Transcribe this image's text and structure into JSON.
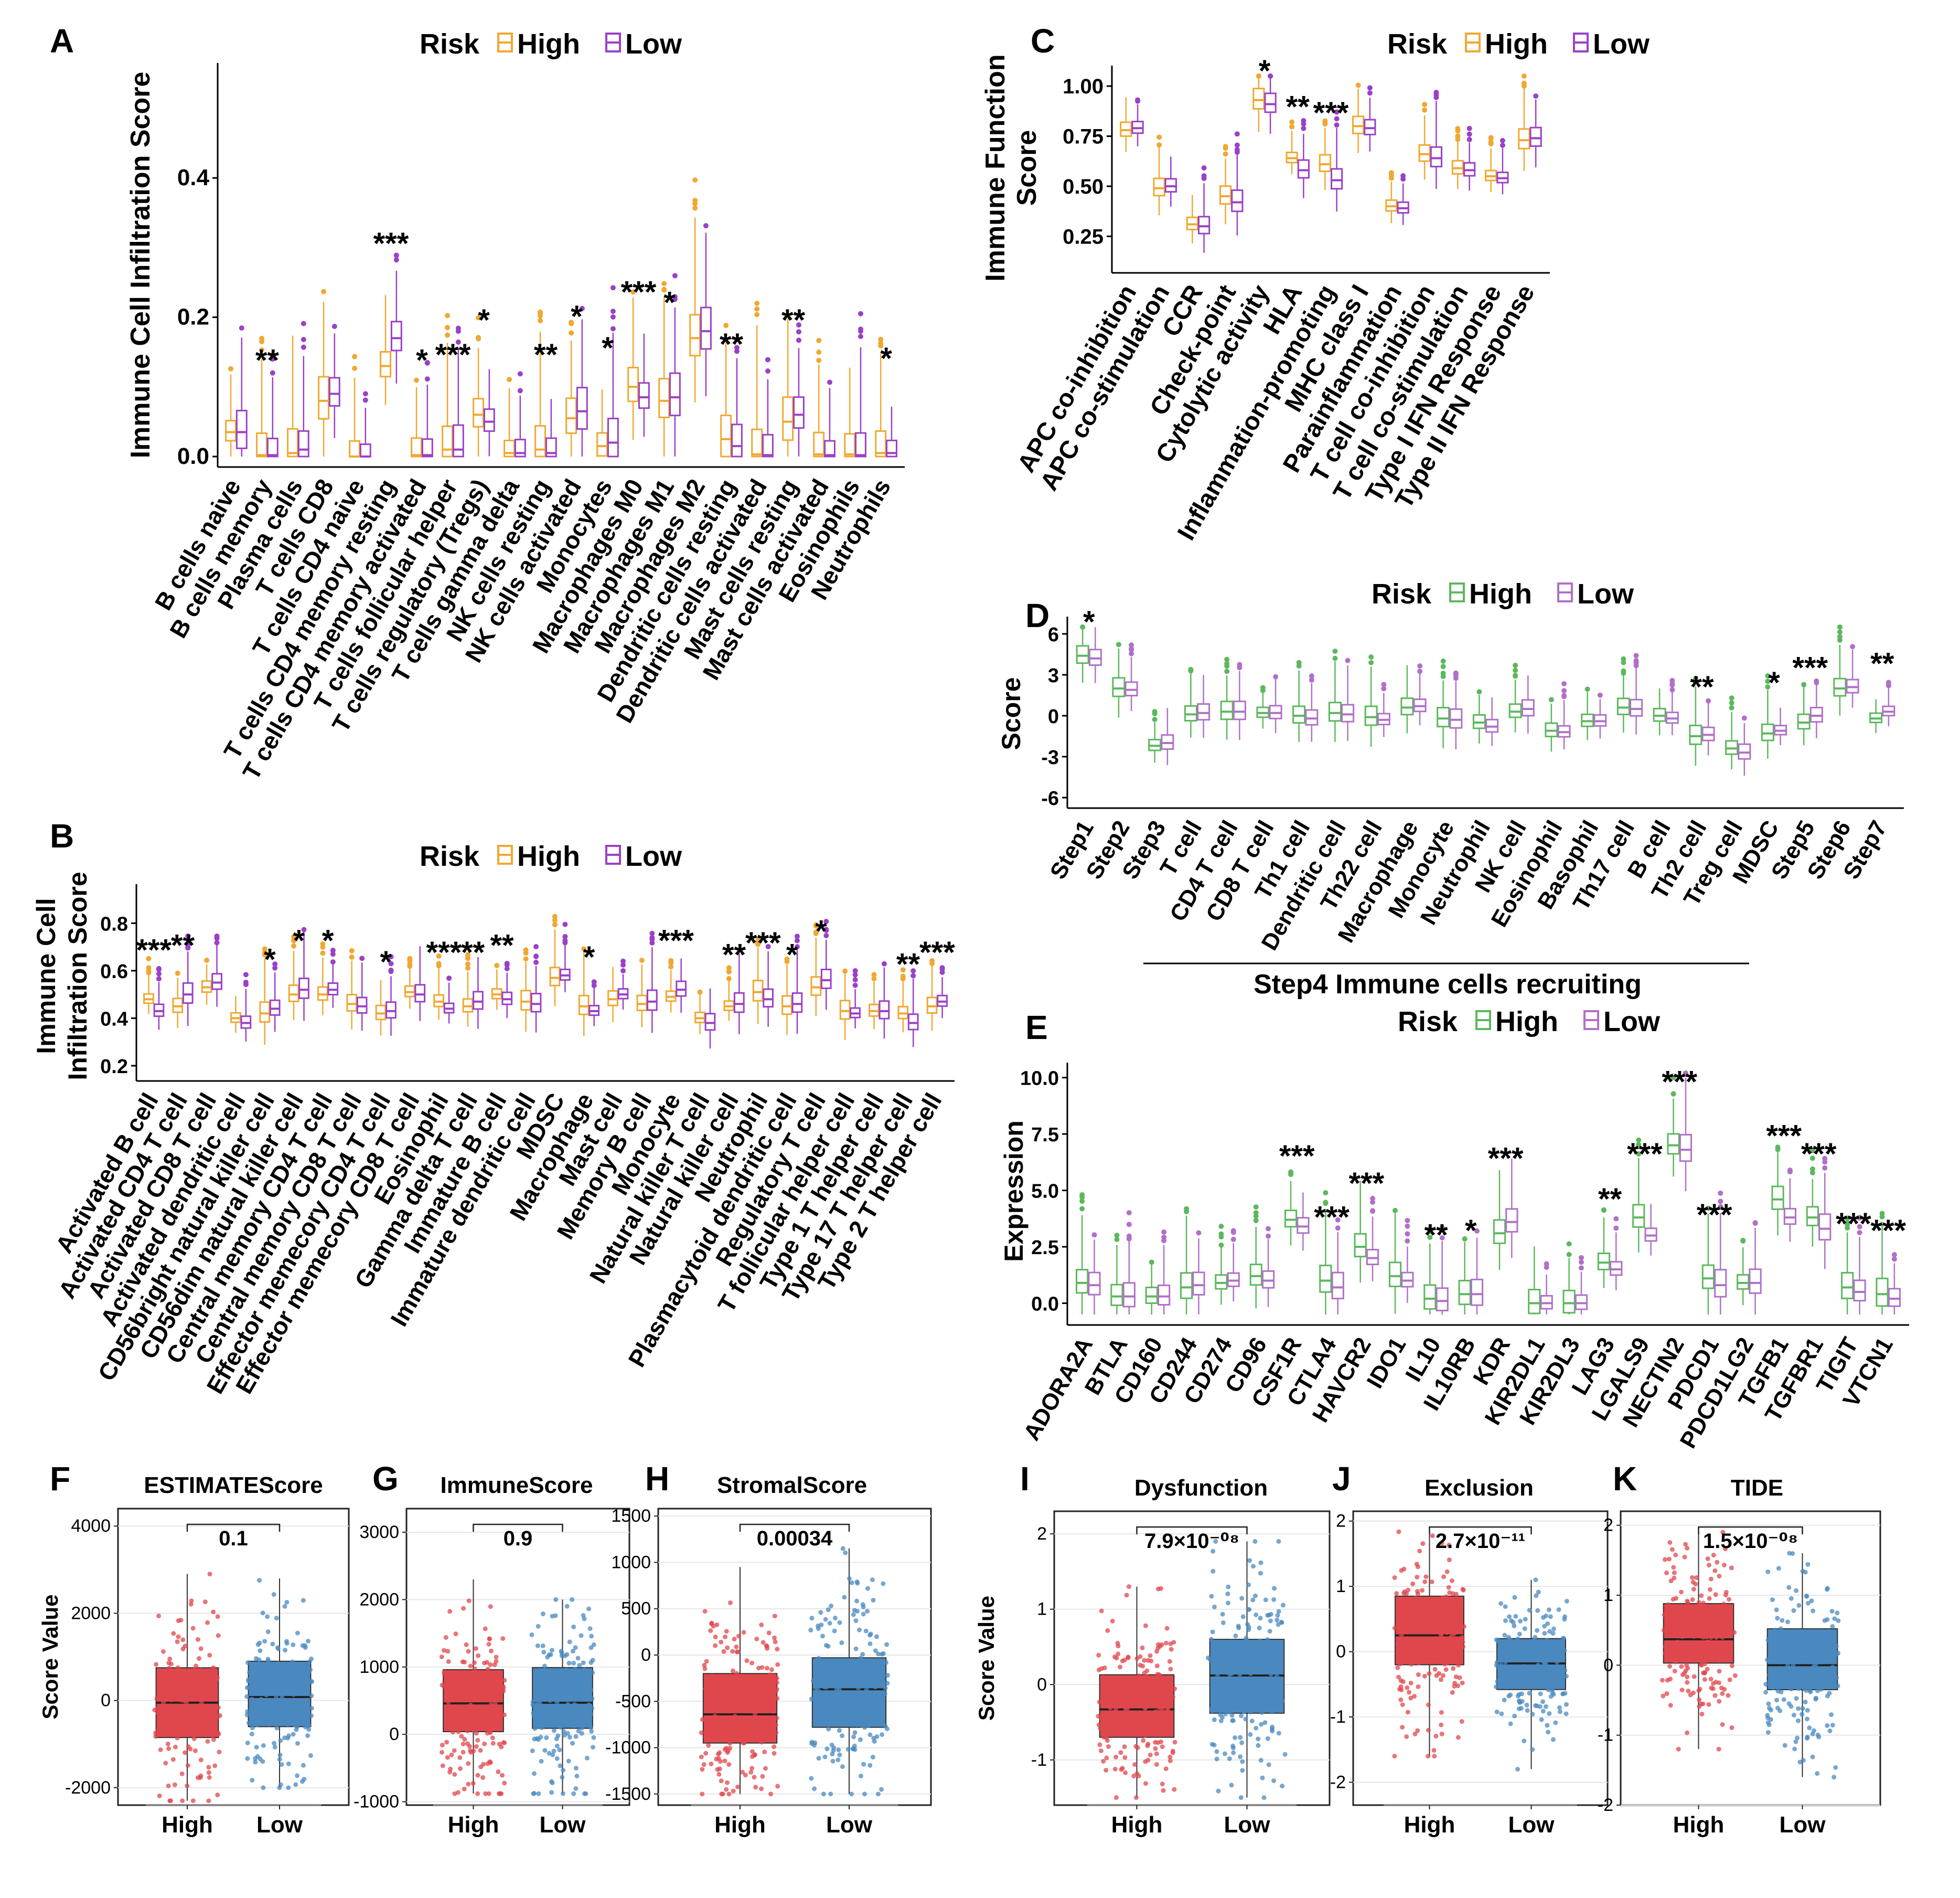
{
  "colors": {
    "high_orange": "#F0A830",
    "low_purple": "#9B40C8",
    "high_green": "#5CB85C",
    "low_violet": "#B070C8",
    "high_red": "#E0474C",
    "low_blue": "#4A89C0"
  },
  "chart_data": [
    {
      "id": "A",
      "label": "A",
      "type": "box",
      "legend": {
        "title": "Risk",
        "items": [
          "High",
          "Low"
        ]
      },
      "ylabel": "Immune Cell Infiltration Score",
      "ylim": [
        0,
        0.55
      ],
      "yticks": [
        0.0,
        0.2,
        0.4
      ],
      "categories": [
        "B cells naive",
        "B cells memory",
        "Plasma cells",
        "T cells CD8",
        "T cells CD4 naive",
        "T cells CD4 memory resting",
        "T cells CD4 memory activated",
        "T cells follicular helper",
        "T cells regulatory (Tregs)",
        "T cells gamma delta",
        "NK cells resting",
        "NK cells activated",
        "Monocytes",
        "Macrophages M0",
        "Macrophages M1",
        "Macrophages M2",
        "Dendritic cells resting",
        "Dendritic cells activated",
        "Mast cells resting",
        "Mast cells activated",
        "Eosinophils",
        "Neutrophils"
      ],
      "series": [
        {
          "name": "High",
          "median": [
            0.035,
            0.002,
            0.005,
            0.08,
            0,
            0.13,
            0.002,
            0.01,
            0.06,
            0.005,
            0.01,
            0.055,
            0.015,
            0.1,
            0.08,
            0.17,
            0.025,
            0.003,
            0.05,
            0.003,
            0.003,
            0.005
          ]
        },
        {
          "name": "Low",
          "median": [
            0.035,
            0.002,
            0.01,
            0.09,
            0,
            0.17,
            0.002,
            0.01,
            0.05,
            0.005,
            0.005,
            0.065,
            0.02,
            0.085,
            0.085,
            0.18,
            0.015,
            0.002,
            0.06,
            0.002,
            0.002,
            0.005
          ]
        }
      ],
      "significance": [
        "",
        "**",
        "",
        "",
        "",
        "***",
        "*",
        "***",
        "*",
        "",
        "**",
        "*",
        "*",
        "***",
        "*",
        "",
        "**",
        "",
        "**",
        "",
        "",
        "*"
      ]
    },
    {
      "id": "B",
      "label": "B",
      "type": "box",
      "legend": {
        "title": "Risk",
        "items": [
          "High",
          "Low"
        ]
      },
      "ylabel": "Immune Cell Infiltration Score",
      "ylim": [
        0.18,
        0.92
      ],
      "yticks": [
        0.2,
        0.4,
        0.6,
        0.8
      ],
      "categories": [
        "Activated B cell",
        "Activated CD4 T cell",
        "Activated CD8 T cell",
        "Activated dendritic cell",
        "CD56bright natural killer cell",
        "CD56dim natural killer cell",
        "Central memory CD4 T cell",
        "Central memory CD8 T cell",
        "Effector memecory CD4 T cell",
        "Effector memecory CD8 T cell",
        "Eosinophil",
        "Gamma delta T cell",
        "Immature B cell",
        "Immature dendritic cell",
        "MDSC",
        "Macrophage",
        "Mast cell",
        "Memory B cell",
        "Monocyte",
        "Natural killer T cell",
        "Natural killer cell",
        "Neutrophil",
        "Plasmacytoid dendritic cell",
        "Regulatory T cell",
        "T follicular helper cell",
        "Type 1 T helper cell",
        "Type 17 T helper cell",
        "Type 2 T helper cell"
      ],
      "series": [
        {
          "name": "High",
          "median": [
            0.48,
            0.45,
            0.53,
            0.4,
            0.42,
            0.5,
            0.5,
            0.46,
            0.42,
            0.51,
            0.47,
            0.45,
            0.5,
            0.47,
            0.57,
            0.45,
            0.48,
            0.46,
            0.49,
            0.4,
            0.45,
            0.51,
            0.45,
            0.53,
            0.43,
            0.43,
            0.42,
            0.45
          ]
        },
        {
          "name": "Low",
          "median": [
            0.43,
            0.5,
            0.55,
            0.38,
            0.44,
            0.52,
            0.52,
            0.45,
            0.43,
            0.5,
            0.44,
            0.47,
            0.48,
            0.46,
            0.58,
            0.43,
            0.5,
            0.47,
            0.52,
            0.38,
            0.46,
            0.48,
            0.46,
            0.56,
            0.42,
            0.43,
            0.38,
            0.47
          ]
        }
      ],
      "significance": [
        "***",
        "**",
        "",
        "",
        "*",
        "*",
        "*",
        "",
        "*",
        "",
        "***",
        "**",
        "**",
        "",
        "",
        "*",
        "",
        "",
        "***",
        "",
        "**",
        "***",
        "*",
        "*",
        "",
        "",
        "**",
        "***"
      ]
    },
    {
      "id": "C",
      "label": "C",
      "type": "box",
      "legend": {
        "title": "Risk",
        "items": [
          "High",
          "Low"
        ]
      },
      "ylabel": "Immune Function Score",
      "ylim": [
        0.12,
        1.05
      ],
      "yticks": [
        0.25,
        0.5,
        0.75,
        1.0
      ],
      "categories": [
        "APC co-inhibition",
        "APC co-stimulation",
        "CCR",
        "Check-point",
        "Cytolytic activity",
        "HLA",
        "Inflammation-promoting",
        "MHC class I",
        "Parainflammation",
        "T cell co-inhibition",
        "T cell co-stimulation",
        "Type I IFN Response",
        "Type II IFN Response"
      ],
      "series": [
        {
          "name": "High",
          "median": [
            0.78,
            0.49,
            0.31,
            0.45,
            0.93,
            0.64,
            0.61,
            0.8,
            0.4,
            0.66,
            0.59,
            0.55,
            0.73
          ]
        },
        {
          "name": "Low",
          "median": [
            0.79,
            0.5,
            0.3,
            0.42,
            0.91,
            0.58,
            0.53,
            0.79,
            0.39,
            0.64,
            0.58,
            0.54,
            0.74
          ]
        }
      ],
      "significance": [
        "",
        "",
        "",
        "",
        "*",
        "**",
        "***",
        "",
        "",
        "",
        "",
        "",
        ""
      ]
    },
    {
      "id": "D",
      "label": "D",
      "type": "box",
      "legend": {
        "title": "Risk",
        "items": [
          "High",
          "Low"
        ]
      },
      "ylabel": "Score",
      "ylim": [
        -6,
        6.5
      ],
      "yticks": [
        -6,
        -3,
        0,
        3,
        6
      ],
      "categories": [
        "Step1",
        "Step2",
        "Step3",
        "T cell",
        "CD4 T cell",
        "CD8 T cell",
        "Th1 cell",
        "Dendritic cell",
        "Th22 cell",
        "Macrophage",
        "Monocyte",
        "Neutrophil",
        "NK cell",
        "Eosinophil",
        "Basophil",
        "Th17 cell",
        "B cell",
        "Th2 cell",
        "Treg cell",
        "MDSC",
        "Step5",
        "Step6",
        "Step7"
      ],
      "series": [
        {
          "name": "High",
          "median": [
            4.4,
            2.0,
            -2.2,
            0.1,
            0.3,
            0.2,
            0.0,
            0.2,
            -0.1,
            0.6,
            -0.2,
            -0.5,
            0.3,
            -1.1,
            -0.4,
            0.6,
            0.0,
            -1.5,
            -2.4,
            -1.3,
            -0.5,
            2.0,
            -0.2
          ]
        },
        {
          "name": "Low",
          "median": [
            4.2,
            1.9,
            -2.0,
            0.2,
            0.3,
            0.2,
            -0.2,
            0.1,
            -0.3,
            0.7,
            -0.3,
            -0.8,
            0.5,
            -1.2,
            -0.4,
            0.5,
            -0.2,
            -1.4,
            -2.7,
            -1.1,
            0.0,
            2.1,
            0.3
          ]
        }
      ],
      "significance": [
        "*",
        "",
        "",
        "",
        "",
        "",
        "",
        "",
        "",
        "",
        "",
        "",
        "",
        "",
        "",
        "",
        "",
        "**",
        "",
        "*",
        "***",
        "",
        "**"
      ],
      "caption": "Step4 Immune cells recruiting"
    },
    {
      "id": "E",
      "label": "E",
      "type": "box",
      "legend": {
        "title": "Risk",
        "items": [
          "High",
          "Low"
        ]
      },
      "ylabel": "Expression",
      "ylim": [
        -0.5,
        10.2
      ],
      "yticks": [
        0.0,
        2.5,
        5.0,
        7.5,
        10.0
      ],
      "categories": [
        "ADORA2A",
        "BTLA",
        "CD160",
        "CD244",
        "CD274",
        "CD96",
        "CSF1R",
        "CTLA4",
        "HAVCR2",
        "IDO1",
        "IL10",
        "IL10RB",
        "KDR",
        "KIR2DL1",
        "KIR2DL3",
        "LAG3",
        "LGALS9",
        "NECTIN2",
        "PDCD1",
        "PDCD1LG2",
        "TGFB1",
        "TGFBR1",
        "TIGIT",
        "VTCN1"
      ],
      "series": [
        {
          "name": "High",
          "median": [
            0.9,
            0.3,
            0.3,
            0.7,
            0.9,
            1.2,
            3.7,
            1.0,
            2.5,
            1.2,
            0.2,
            0.4,
            3.1,
            0.0,
            0.0,
            1.8,
            3.8,
            7.0,
            1.1,
            0.9,
            4.6,
            3.8,
            0.7,
            0.4
          ]
        },
        {
          "name": "Low",
          "median": [
            0.8,
            0.3,
            0.3,
            0.8,
            1.0,
            1.0,
            3.4,
            0.7,
            2.0,
            1.0,
            0.1,
            0.4,
            3.6,
            0.0,
            0.0,
            1.5,
            3.0,
            6.8,
            0.8,
            0.9,
            3.8,
            3.3,
            0.5,
            0.2
          ]
        }
      ],
      "significance": [
        "",
        "",
        "",
        "",
        "",
        "",
        "***",
        "***",
        "***",
        "",
        "**",
        "*",
        "***",
        "",
        "",
        "**",
        "***",
        "***",
        "***",
        "",
        "***",
        "***",
        "***",
        "***"
      ]
    },
    {
      "id": "F",
      "label": "F",
      "type": "box",
      "title": "ESTIMATEScore",
      "categories": [
        "High",
        "Low"
      ],
      "ylabel": "Score Value",
      "ylim": [
        -2400,
        4400
      ],
      "yticks": [
        -2000,
        0,
        2000,
        4000
      ],
      "pvalue": "0.1",
      "boxes": [
        {
          "q1": -850,
          "median": -50,
          "q3": 750,
          "min": -2300,
          "max": 2900
        },
        {
          "q1": -600,
          "median": 80,
          "q3": 900,
          "min": -2000,
          "max": 2800
        }
      ]
    },
    {
      "id": "G",
      "label": "G",
      "type": "box",
      "title": "ImmuneScore",
      "categories": [
        "High",
        "Low"
      ],
      "ylabel": "",
      "ylim": [
        -1050,
        3350
      ],
      "yticks": [
        -1000,
        0,
        1000,
        2000,
        3000
      ],
      "pvalue": "0.9",
      "boxes": [
        {
          "q1": 40,
          "median": 460,
          "q3": 960,
          "min": -880,
          "max": 2300
        },
        {
          "q1": 90,
          "median": 470,
          "q3": 990,
          "min": -880,
          "max": 2000
        }
      ]
    },
    {
      "id": "H",
      "label": "H",
      "type": "box",
      "title": "StromalScore",
      "categories": [
        "High",
        "Low"
      ],
      "ylabel": "",
      "ylim": [
        -1620,
        1580
      ],
      "yticks": [
        -1500,
        -1000,
        -500,
        0,
        500,
        1000,
        1500
      ],
      "pvalue": "0.00034",
      "boxes": [
        {
          "q1": -950,
          "median": -640,
          "q3": -200,
          "min": -1500,
          "max": 950
        },
        {
          "q1": -780,
          "median": -370,
          "q3": -30,
          "min": -1500,
          "max": 1150
        }
      ]
    },
    {
      "id": "I",
      "label": "I",
      "type": "box",
      "title": "Dysfunction",
      "categories": [
        "High",
        "Low"
      ],
      "ylabel": "Score Value",
      "ylim": [
        -1.6,
        2.3
      ],
      "yticks": [
        -1,
        0,
        1,
        2
      ],
      "pvalue": "7.9×10⁻⁰⁸",
      "boxes": [
        {
          "q1": -0.7,
          "median": -0.33,
          "q3": 0.13,
          "min": -1.5,
          "max": 1.3
        },
        {
          "q1": -0.38,
          "median": 0.12,
          "q3": 0.6,
          "min": -1.5,
          "max": 1.9
        }
      ]
    },
    {
      "id": "J",
      "label": "J",
      "type": "box",
      "title": "Exclusion",
      "categories": [
        "High",
        "Low"
      ],
      "ylabel": "",
      "ylim": [
        -2.35,
        2.15
      ],
      "yticks": [
        -2,
        -1,
        0,
        1,
        2
      ],
      "pvalue": "2.7×10⁻¹¹",
      "boxes": [
        {
          "q1": -0.2,
          "median": 0.25,
          "q3": 0.85,
          "min": -1.6,
          "max": 1.9
        },
        {
          "q1": -0.58,
          "median": -0.18,
          "q3": 0.2,
          "min": -1.8,
          "max": 1.1
        }
      ]
    },
    {
      "id": "K",
      "label": "K",
      "type": "box",
      "title": "TIDE",
      "categories": [
        "High",
        "Low"
      ],
      "ylabel": "",
      "ylim": [
        -2.0,
        2.2
      ],
      "yticks": [
        -2,
        -1,
        0,
        1,
        2
      ],
      "pvalue": "1.5×10⁻⁰⁸",
      "boxes": [
        {
          "q1": 0.03,
          "median": 0.37,
          "q3": 0.88,
          "min": -1.2,
          "max": 1.9
        },
        {
          "q1": -0.35,
          "median": 0.0,
          "q3": 0.52,
          "min": -1.6,
          "max": 1.6
        }
      ]
    }
  ]
}
